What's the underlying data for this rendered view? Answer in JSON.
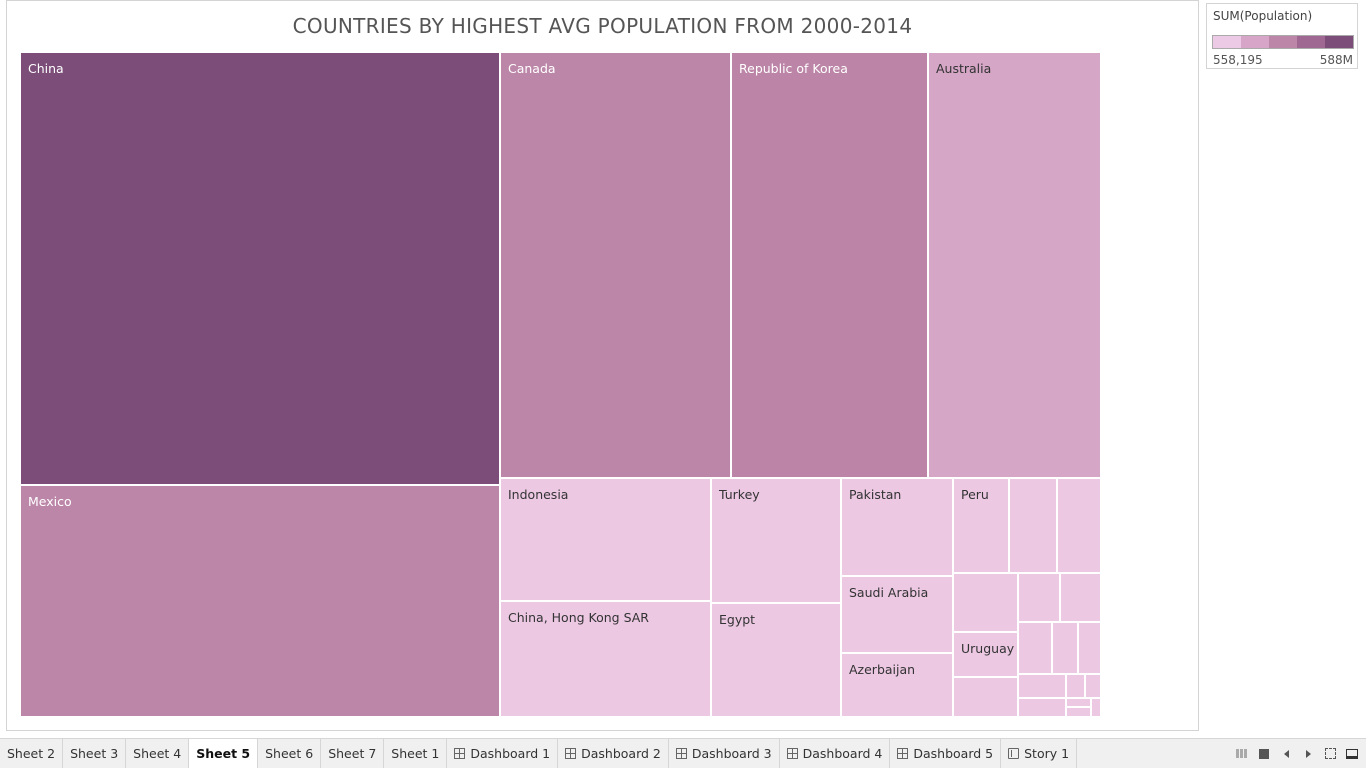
{
  "sheet": {
    "title": "COUNTRIES BY HIGHEST AVG POPULATION FROM 2000-2014"
  },
  "legend": {
    "title": "SUM(Population)",
    "min_label": "558,195",
    "max_label": "588M",
    "ramp_colors": [
      "#ecc9e4",
      "#d7a5c8",
      "#bc86a8",
      "#9f6893",
      "#7b4d78"
    ]
  },
  "chart_data": {
    "type": "treemap",
    "title": "COUNTRIES BY HIGHEST AVG POPULATION FROM 2000-2014",
    "measure": "SUM(Population)",
    "color_range": [
      "558,195",
      "588M"
    ],
    "items": [
      {
        "label": "China",
        "color": "#7b4d78"
      },
      {
        "label": "Mexico",
        "color": "#bc86a8"
      },
      {
        "label": "Canada",
        "color": "#bc86a8"
      },
      {
        "label": "Republic of Korea",
        "color": "#bc84a6"
      },
      {
        "label": "Australia",
        "color": "#d6a6c7"
      },
      {
        "label": "Indonesia",
        "color": "#ecc8e3"
      },
      {
        "label": "China, Hong Kong SAR",
        "color": "#ecc8e3"
      },
      {
        "label": "Turkey",
        "color": "#ecc8e3"
      },
      {
        "label": "Egypt",
        "color": "#ecc8e3"
      },
      {
        "label": "Pakistan",
        "color": "#ecc8e3"
      },
      {
        "label": "Saudi Arabia",
        "color": "#ecc8e3"
      },
      {
        "label": "Azerbaijan",
        "color": "#ecc8e3"
      },
      {
        "label": "Peru",
        "color": "#ecc8e3"
      },
      {
        "label": "Uruguay",
        "color": "#ecc8e3"
      }
    ]
  },
  "tabs": [
    {
      "label": "Sheet 2",
      "kind": "sheet",
      "active": false
    },
    {
      "label": "Sheet 3",
      "kind": "sheet",
      "active": false
    },
    {
      "label": "Sheet 4",
      "kind": "sheet",
      "active": false
    },
    {
      "label": "Sheet 5",
      "kind": "sheet",
      "active": true
    },
    {
      "label": "Sheet 6",
      "kind": "sheet",
      "active": false
    },
    {
      "label": "Sheet 7",
      "kind": "sheet",
      "active": false
    },
    {
      "label": "Sheet 1",
      "kind": "sheet",
      "active": false
    },
    {
      "label": "Dashboard 1",
      "kind": "dashboard",
      "active": false
    },
    {
      "label": "Dashboard 2",
      "kind": "dashboard",
      "active": false
    },
    {
      "label": "Dashboard 3",
      "kind": "dashboard",
      "active": false
    },
    {
      "label": "Dashboard 4",
      "kind": "dashboard",
      "active": false
    },
    {
      "label": "Dashboard 5",
      "kind": "dashboard",
      "active": false
    },
    {
      "label": "Story 1",
      "kind": "story",
      "active": false
    }
  ],
  "controls": [
    "grid-view-icon",
    "stop-icon",
    "previous-icon",
    "next-icon",
    "fullscreen-icon",
    "presentation-mode-icon"
  ]
}
